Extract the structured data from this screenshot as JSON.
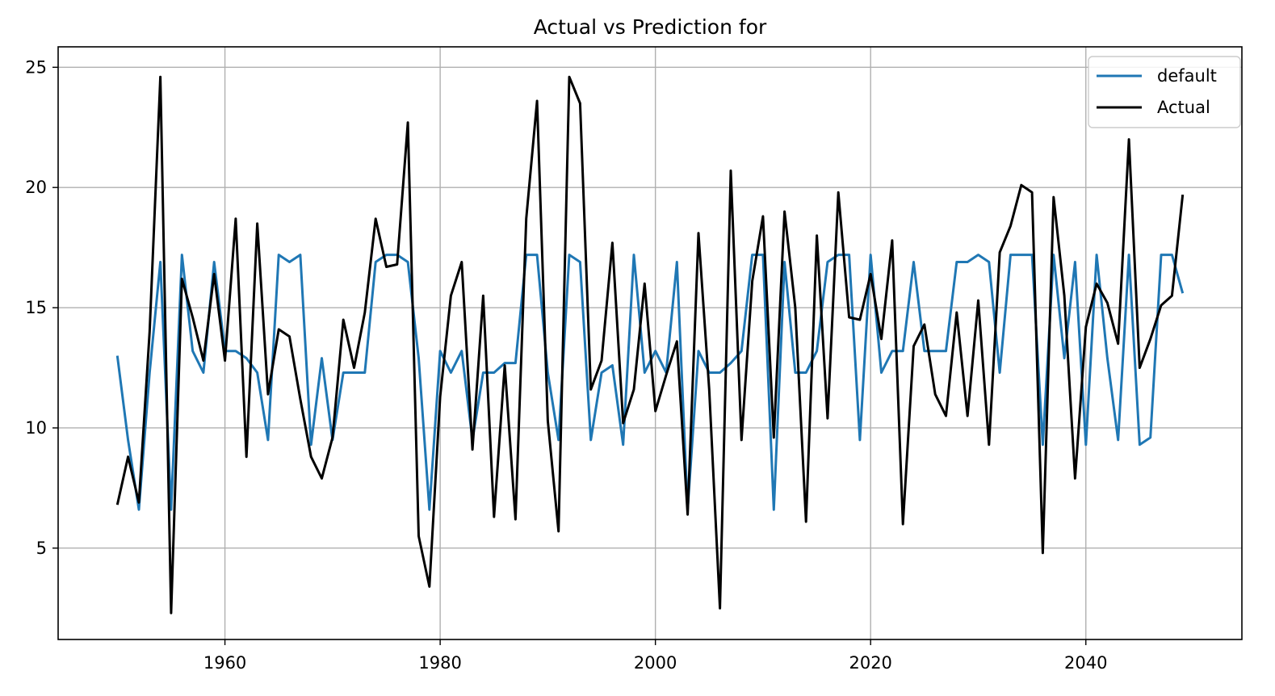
{
  "chart_data": {
    "type": "line",
    "title": "Actual vs Prediction for",
    "xlabel": "",
    "ylabel": "",
    "xlim": [
      1944.5,
      2054.5
    ],
    "ylim": [
      1.2,
      25.85
    ],
    "grid": true,
    "legend_position": "top-right",
    "x_ticks": [
      1960,
      1980,
      2000,
      2020,
      2040
    ],
    "y_ticks": [
      5,
      10,
      15,
      20,
      25
    ],
    "x": [
      1950,
      1951,
      1952,
      1953,
      1954,
      1955,
      1956,
      1957,
      1958,
      1959,
      1960,
      1961,
      1962,
      1963,
      1964,
      1965,
      1966,
      1967,
      1968,
      1969,
      1970,
      1971,
      1972,
      1973,
      1974,
      1975,
      1976,
      1977,
      1978,
      1979,
      1980,
      1981,
      1982,
      1983,
      1984,
      1985,
      1986,
      1987,
      1988,
      1989,
      1990,
      1991,
      1992,
      1993,
      1994,
      1995,
      1996,
      1997,
      1998,
      1999,
      2000,
      2001,
      2002,
      2003,
      2004,
      2005,
      2006,
      2007,
      2008,
      2009,
      2010,
      2011,
      2012,
      2013,
      2014,
      2015,
      2016,
      2017,
      2018,
      2019,
      2020,
      2021,
      2022,
      2023,
      2024,
      2025,
      2026,
      2027,
      2028,
      2029,
      2030,
      2031,
      2032,
      2033,
      2034,
      2035,
      2036,
      2037,
      2038,
      2039,
      2040,
      2041,
      2042,
      2043,
      2044,
      2045,
      2046,
      2047,
      2048,
      2049
    ],
    "series": [
      {
        "name": "default",
        "color": "#1f77b4",
        "values": [
          13.0,
          9.5,
          6.6,
          12.3,
          16.9,
          6.6,
          17.2,
          13.2,
          12.3,
          16.9,
          13.2,
          13.2,
          12.9,
          12.3,
          9.5,
          17.2,
          16.9,
          17.2,
          9.3,
          12.9,
          9.5,
          12.3,
          12.3,
          12.3,
          16.9,
          17.2,
          17.2,
          16.9,
          12.9,
          6.6,
          13.2,
          12.3,
          13.2,
          9.5,
          12.3,
          12.3,
          12.7,
          12.7,
          17.2,
          17.2,
          12.3,
          9.5,
          17.2,
          16.9,
          9.5,
          12.3,
          12.6,
          9.3,
          17.2,
          12.3,
          13.2,
          12.3,
          16.9,
          6.6,
          13.2,
          12.3,
          12.3,
          12.7,
          13.2,
          17.2,
          17.2,
          6.6,
          16.9,
          12.3,
          12.3,
          13.2,
          16.9,
          17.2,
          17.2,
          9.5,
          17.2,
          12.3,
          13.2,
          13.2,
          16.9,
          13.2,
          13.2,
          13.2,
          16.9,
          16.9,
          17.2,
          16.9,
          12.3,
          17.2,
          17.2,
          17.2,
          9.3,
          17.2,
          12.9,
          16.9,
          9.3,
          17.2,
          12.9,
          9.5,
          17.2,
          9.3,
          9.6,
          17.2,
          17.2,
          15.6
        ]
      },
      {
        "name": "Actual",
        "color": "#000000",
        "values": [
          6.8,
          8.8,
          6.9,
          14.0,
          24.6,
          2.3,
          16.2,
          14.6,
          12.8,
          16.4,
          12.8,
          18.7,
          8.8,
          18.5,
          11.4,
          14.1,
          13.8,
          11.2,
          8.8,
          7.9,
          9.6,
          14.5,
          12.5,
          14.8,
          18.7,
          16.7,
          16.8,
          22.7,
          5.5,
          3.4,
          11.3,
          15.5,
          16.9,
          9.1,
          15.5,
          6.3,
          12.6,
          6.2,
          18.7,
          23.6,
          10.3,
          5.7,
          24.6,
          23.5,
          11.6,
          12.8,
          17.7,
          10.2,
          11.6,
          16.0,
          10.7,
          12.2,
          13.6,
          6.4,
          18.1,
          11.6,
          2.5,
          20.7,
          9.5,
          16.1,
          18.8,
          9.6,
          19.0,
          15.0,
          6.1,
          18.0,
          10.4,
          19.8,
          14.6,
          14.5,
          16.4,
          13.7,
          17.8,
          6.0,
          13.4,
          14.3,
          11.4,
          10.5,
          14.8,
          10.5,
          15.3,
          9.3,
          17.3,
          18.4,
          20.1,
          19.8,
          4.8,
          19.6,
          15.5,
          7.9,
          14.2,
          16.0,
          15.2,
          13.5,
          22.0,
          12.5,
          13.7,
          15.1,
          15.5,
          19.7
        ]
      }
    ]
  }
}
